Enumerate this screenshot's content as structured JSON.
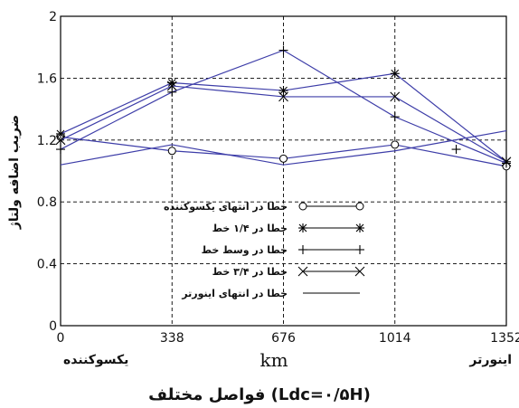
{
  "chart_data": {
    "type": "line",
    "x": [
      0,
      338,
      676,
      1014,
      1352
    ],
    "x_ticks": [
      "0",
      "338",
      "676",
      "1014",
      "1352"
    ],
    "y_ticks": [
      "0",
      "0.4",
      "0.8",
      "1.2",
      "1.6",
      "2"
    ],
    "xlim": [
      0,
      1352
    ],
    "ylim": [
      0,
      2
    ],
    "xlabel": "km",
    "ylabel": "ضریب اضافه ولتاژ",
    "x_left_label": "یکسوکننده",
    "x_right_label": "اینورتر",
    "caption": "فواصل مختلف (Ldc=۰/۵H)",
    "grid": true,
    "legend_position": "bottom-center",
    "line_color": "#3d3da8",
    "series": [
      {
        "name": "خطا در انتهای یکسوکننده",
        "marker": "circle",
        "values": [
          1.22,
          1.13,
          1.08,
          1.17,
          1.03
        ]
      },
      {
        "name": "خطا در ۱/۴ خط",
        "marker": "star",
        "values": [
          1.24,
          1.57,
          1.52,
          1.63,
          1.06
        ]
      },
      {
        "name": "خطا در وسط خط",
        "marker": "plus",
        "values": [
          1.14,
          1.51,
          1.78,
          1.35,
          1.05
        ]
      },
      {
        "name": "خطا در ۳/۴ خط",
        "marker": "cross",
        "values": [
          1.2,
          1.55,
          1.48,
          1.48,
          1.06
        ]
      },
      {
        "name": "خطا در انتهای اینورتر",
        "marker": "none",
        "values": [
          1.04,
          1.17,
          1.04,
          1.13,
          1.26
        ]
      }
    ],
    "extra_points": [
      {
        "x": 1200,
        "y": 1.14,
        "marker": "plus"
      }
    ]
  }
}
